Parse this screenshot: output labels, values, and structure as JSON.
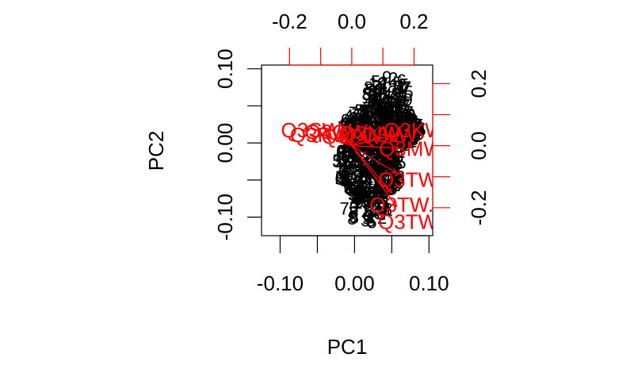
{
  "chart_data": {
    "type": "scatter",
    "subtype": "biplot",
    "title": "",
    "xlabel": "PC1",
    "ylabel": "PC2",
    "xlim": [
      -0.125,
      0.105
    ],
    "ylim": [
      -0.125,
      0.105
    ],
    "x_ticks": [
      -0.1,
      -0.05,
      0.0,
      0.05,
      0.1
    ],
    "x_tick_labels": [
      "-0.10",
      "0.00",
      "0.10"
    ],
    "x_tick_label_values": [
      -0.1,
      0.0,
      0.1
    ],
    "y_ticks": [
      -0.1,
      -0.05,
      0.0,
      0.05,
      0.1
    ],
    "y_tick_labels": [
      "-0.10",
      "0.00",
      "0.10"
    ],
    "y_tick_label_values": [
      -0.1,
      0.0,
      0.1
    ],
    "loadings_xlim": [
      -0.29,
      0.26
    ],
    "loadings_ylim": [
      -0.29,
      0.26
    ],
    "top_ticks": [
      -0.2,
      -0.1,
      0.0,
      0.1,
      0.2
    ],
    "top_tick_labels": [
      "-0.2",
      "0.0",
      "0.2"
    ],
    "top_tick_label_values": [
      -0.2,
      0.0,
      0.2
    ],
    "right_ticks": [
      -0.2,
      -0.1,
      0.0,
      0.1,
      0.2
    ],
    "right_tick_labels": [
      "-0.2",
      "0.0",
      "0.2"
    ],
    "right_tick_label_values": [
      -0.2,
      0.0,
      0.2
    ],
    "grid": false,
    "legend": "none",
    "score_color": "#000000",
    "loading_color": "#ff0000",
    "score_labels": [
      "8",
      "5",
      "6",
      "5",
      "3",
      "1",
      "4",
      "7",
      "2",
      "9"
    ],
    "score_regions": [
      {
        "cx": 0.035,
        "cy": 0.02,
        "rx": 0.055,
        "ry": 0.03,
        "n": 320
      },
      {
        "cx": 0.02,
        "cy": -0.035,
        "rx": 0.045,
        "ry": 0.045,
        "n": 260
      },
      {
        "cx": 0.045,
        "cy": 0.065,
        "rx": 0.03,
        "ry": 0.025,
        "n": 70
      },
      {
        "cx": 0.015,
        "cy": -0.09,
        "rx": 0.03,
        "ry": 0.018,
        "n": 40
      }
    ],
    "loadings": [
      {
        "label": "Q3TW",
        "x": 0.18,
        "y": -0.11
      },
      {
        "label": "Q3TW.",
        "x": 0.16,
        "y": -0.19
      },
      {
        "label": "Q3TW",
        "x": 0.18,
        "y": -0.245
      },
      {
        "label": "Q3MW",
        "x": 0.19,
        "y": -0.01
      },
      {
        "label": "Q3SW",
        "x": -0.13,
        "y": 0.05
      },
      {
        "label": "Q3RW",
        "x": -0.1,
        "y": 0.035
      },
      {
        "label": "Q3QW",
        "x": -0.05,
        "y": 0.045
      },
      {
        "label": "Q3PW",
        "x": 0.0,
        "y": 0.03
      },
      {
        "label": "Q3NW",
        "x": 0.06,
        "y": 0.04
      },
      {
        "label": "Q3LW",
        "x": 0.12,
        "y": 0.035
      },
      {
        "label": "Q3KW",
        "x": 0.2,
        "y": 0.05
      }
    ]
  }
}
